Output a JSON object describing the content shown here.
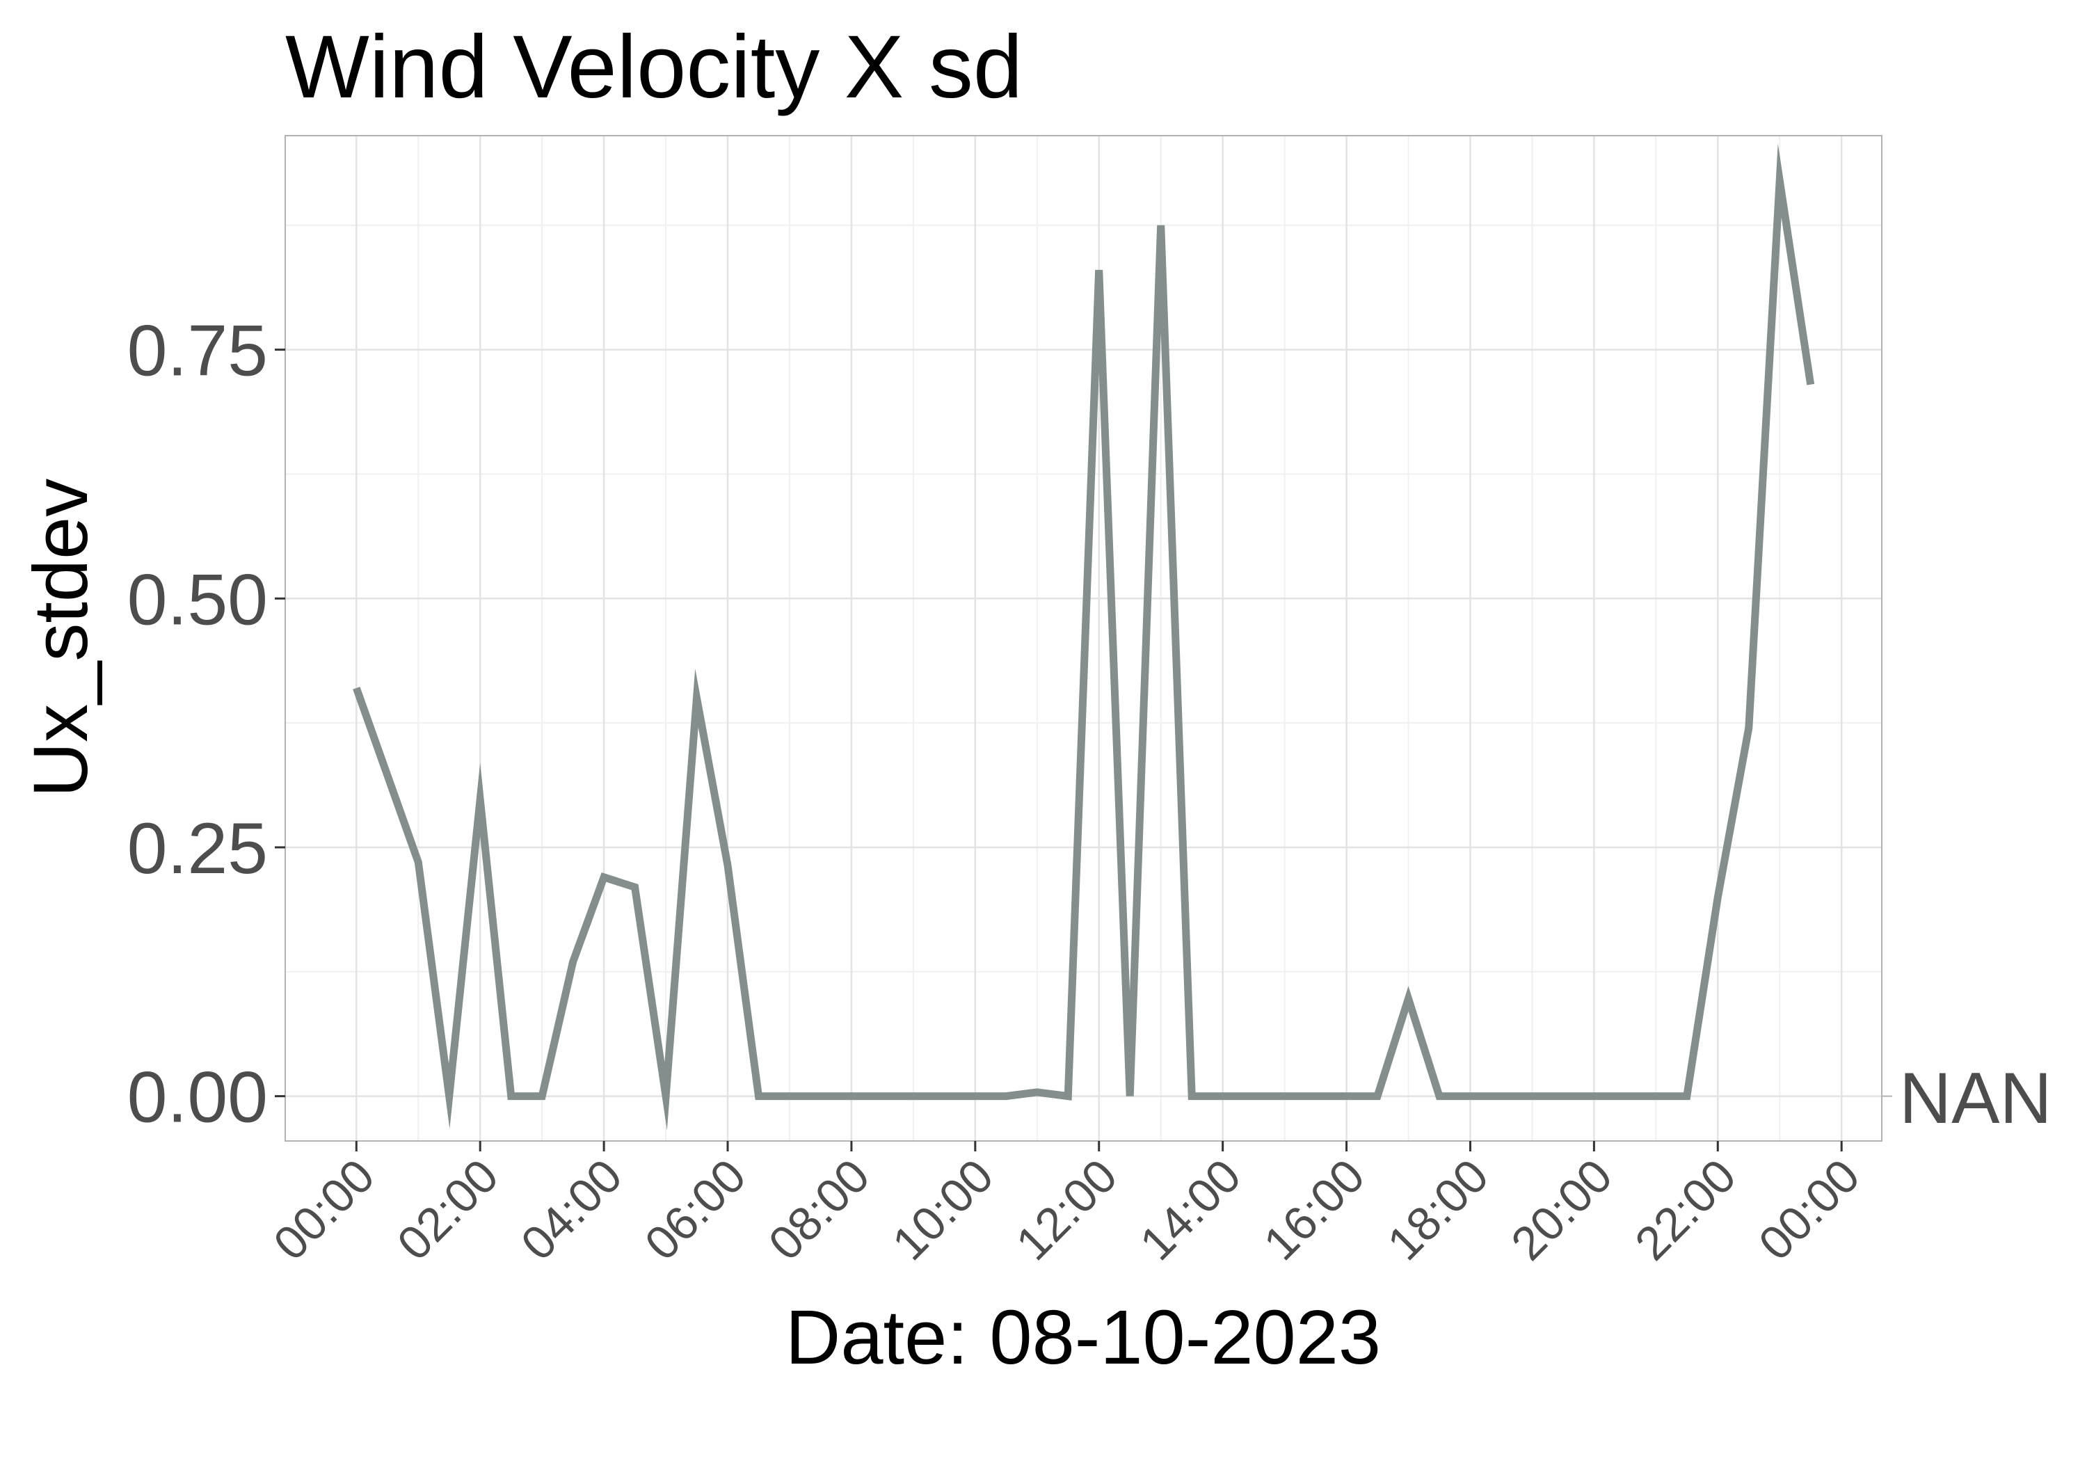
{
  "chart_data": {
    "type": "line",
    "title": "Wind Velocity X sd",
    "xlabel": "Date: 08-10-2023",
    "ylabel": "Ux_stdev",
    "x_tick_labels": [
      "00:00",
      "02:00",
      "04:00",
      "06:00",
      "08:00",
      "10:00",
      "12:00",
      "14:00",
      "16:00",
      "18:00",
      "20:00",
      "22:00",
      "00:00"
    ],
    "x_ticks_hours": [
      0,
      2,
      4,
      6,
      8,
      10,
      12,
      14,
      16,
      18,
      20,
      22,
      24
    ],
    "y_ticks": [
      0,
      0.25,
      0.5,
      0.75
    ],
    "y_tick_labels": [
      "0.00",
      "0.25",
      "0.50",
      "0.75"
    ],
    "xlim_hours": [
      -1.15,
      24.65
    ],
    "ylim": [
      -0.045,
      0.965
    ],
    "grid": true,
    "right_label": "NAN",
    "line_color": "#848e8c",
    "series": [
      {
        "x_hours": [
          0,
          1,
          1.5,
          2,
          2.5,
          3,
          3.5,
          4,
          4.5,
          5,
          5.5,
          6,
          6.5,
          7,
          7.5,
          8,
          8.5,
          9,
          9.5,
          10,
          10.5,
          11,
          11.5,
          12,
          12.5,
          13,
          13.5,
          14,
          14.5,
          15,
          15.5,
          16,
          16.5,
          17,
          17.5,
          18,
          18.5,
          19,
          19.5,
          20,
          20.5,
          21,
          21.5,
          22,
          22.5,
          23,
          23.5
        ],
        "values": [
          0.41,
          0.235,
          0,
          0.298,
          0,
          0,
          0.135,
          0.22,
          0.21,
          0,
          0.4,
          0.232,
          0,
          0,
          0,
          0,
          0,
          0,
          0,
          0,
          0,
          0.004,
          0,
          0.83,
          0,
          0.875,
          0,
          0,
          0,
          0,
          0,
          0,
          0,
          0.098,
          0,
          0,
          0,
          0,
          0,
          0,
          0,
          0,
          0,
          0.2,
          0.37,
          0.92,
          0.715
        ]
      }
    ]
  }
}
